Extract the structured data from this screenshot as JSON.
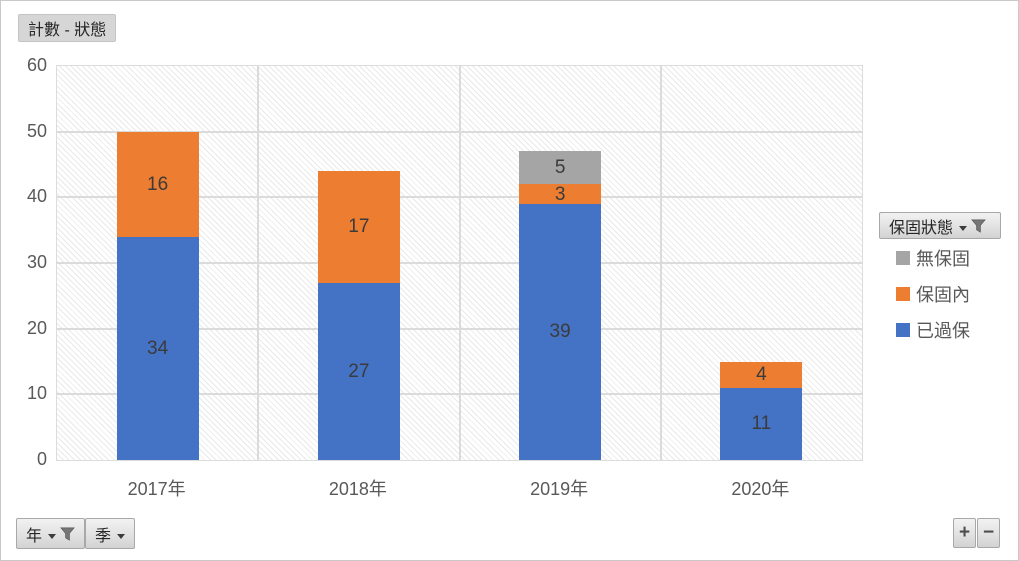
{
  "buttons": {
    "value_field": "計數 - 狀態",
    "legend_field": "保固狀態",
    "axis_field_year": "年",
    "axis_field_quarter": "季",
    "expand": "+",
    "collapse": "−"
  },
  "icons": {
    "filter": "funnel-icon",
    "dropdown": "chevron-down-icon"
  },
  "colors": {
    "blue": "#4472C4",
    "orange": "#ED7D31",
    "gray": "#A5A5A5",
    "grid": "#DBDBDB",
    "axis_text": "#595959",
    "data_label_text": "#3B3B3B"
  },
  "chart_data": {
    "type": "bar",
    "stacked": true,
    "title": "計數 - 狀態",
    "categories": [
      "2017年",
      "2018年",
      "2019年",
      "2020年"
    ],
    "series": [
      {
        "name": "已過保",
        "color": "#4472C4",
        "values": [
          34,
          27,
          39,
          11
        ]
      },
      {
        "name": "保固內",
        "color": "#ED7D31",
        "values": [
          16,
          17,
          3,
          4
        ]
      },
      {
        "name": "無保固",
        "color": "#A5A5A5",
        "values": [
          0,
          0,
          5,
          0
        ]
      }
    ],
    "totals": [
      50,
      44,
      47,
      15
    ],
    "ylim": [
      0,
      60
    ],
    "yticks": [
      0,
      10,
      20,
      30,
      40,
      50,
      60
    ],
    "grid": true,
    "plot_pattern": "light-diagonal-hatch",
    "legend_position": "right",
    "legend_order": [
      "無保固",
      "保固內",
      "已過保"
    ],
    "xlabel": "",
    "ylabel": ""
  }
}
